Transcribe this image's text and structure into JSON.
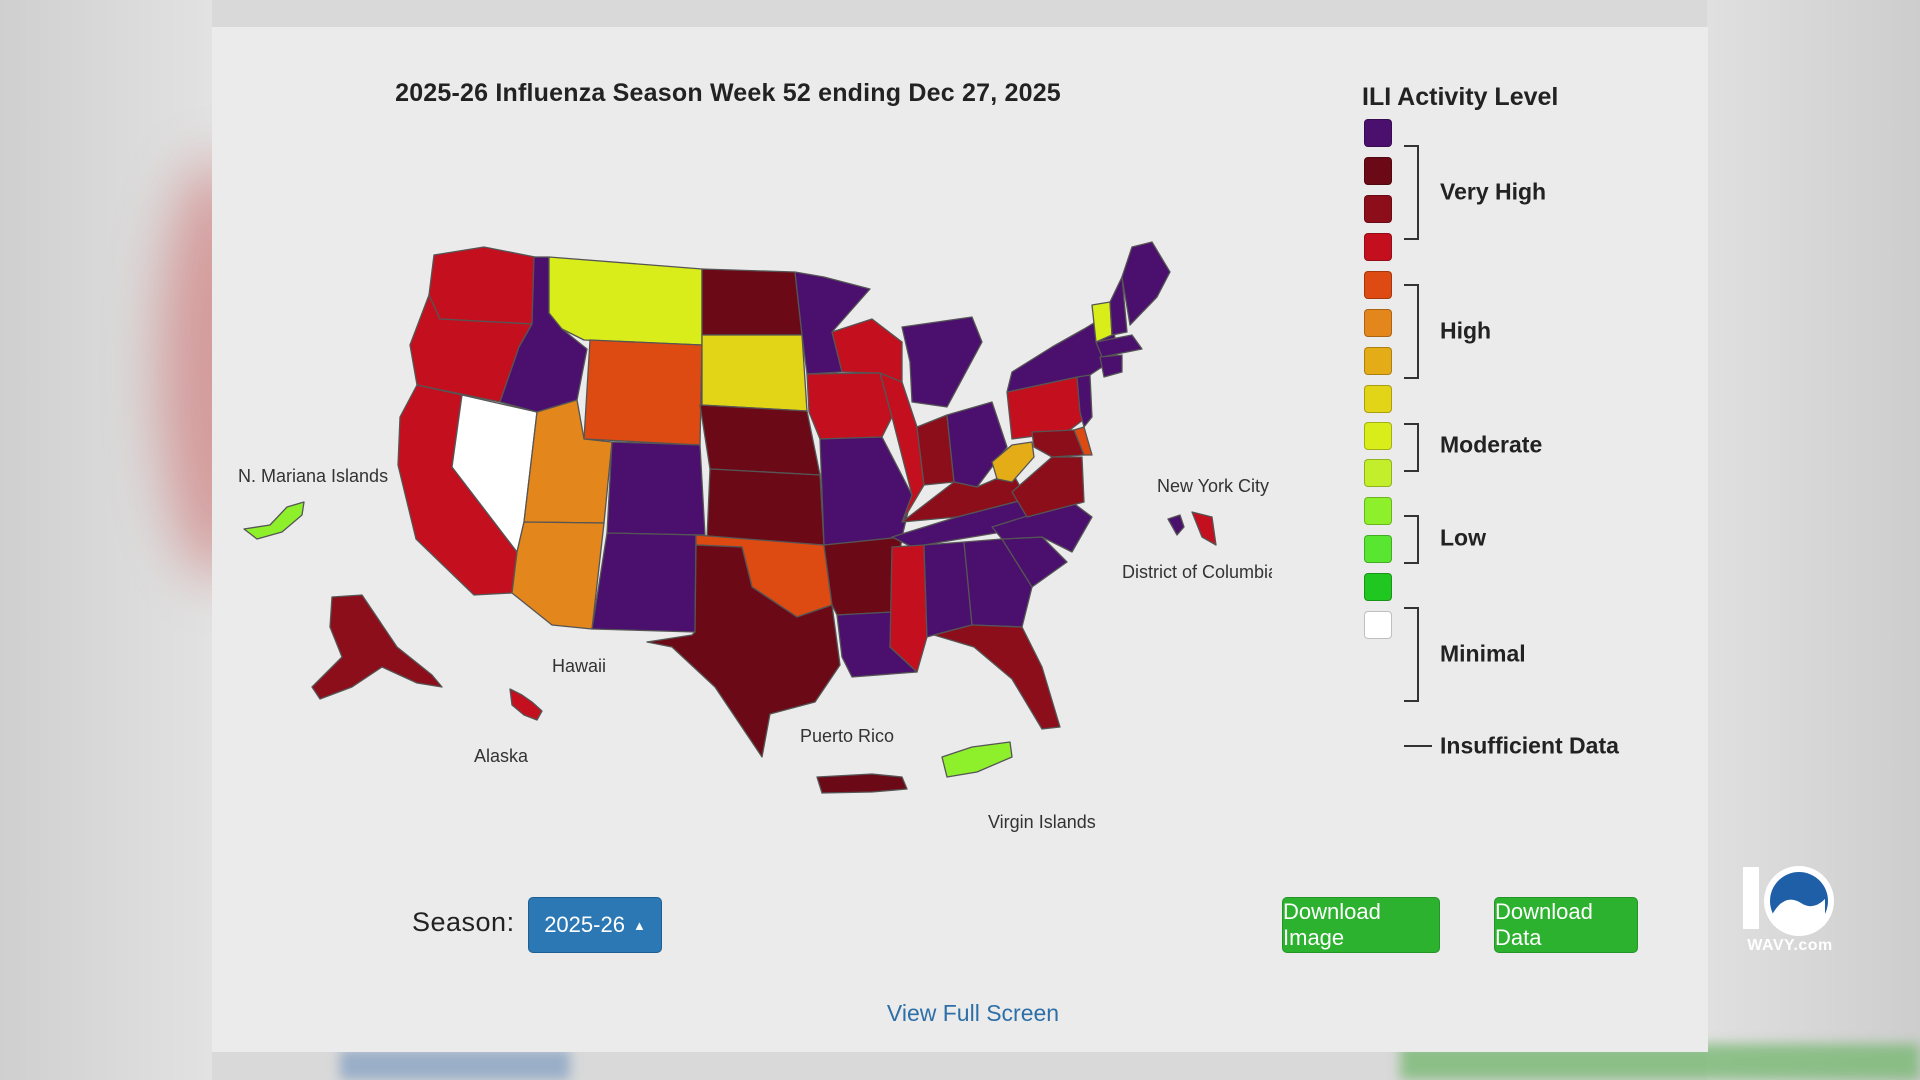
{
  "title": "2025-26 Influenza Season Week 52 ending Dec 27, 2025",
  "legend": {
    "title": "ILI Activity Level",
    "swatches": [
      {
        "level": 13,
        "color": "#4b0f6d"
      },
      {
        "level": 12,
        "color": "#6b0a16"
      },
      {
        "level": 11,
        "color": "#8c0e1b"
      },
      {
        "level": 10,
        "color": "#c4101e"
      },
      {
        "level": 9,
        "color": "#dd4a12"
      },
      {
        "level": 8,
        "color": "#e3861b"
      },
      {
        "level": 7,
        "color": "#e4ac17"
      },
      {
        "level": 6,
        "color": "#e2d417"
      },
      {
        "level": 5,
        "color": "#d9ed1a"
      },
      {
        "level": 4,
        "color": "#c2ee2b"
      },
      {
        "level": 3,
        "color": "#8ef02b"
      },
      {
        "level": 2,
        "color": "#58e630"
      },
      {
        "level": 1,
        "color": "#20c720"
      },
      {
        "level": 0,
        "color": "#ffffff"
      }
    ],
    "groups": [
      {
        "label": "Very High"
      },
      {
        "label": "High"
      },
      {
        "label": "Moderate"
      },
      {
        "label": "Low"
      },
      {
        "label": "Minimal"
      },
      {
        "label": "Insufficient Data"
      }
    ]
  },
  "map": {
    "labels": {
      "nmi": "N. Mariana Islands",
      "hawaii": "Hawaii",
      "alaska": "Alaska",
      "puerto_rico": "Puerto Rico",
      "virgin_islands": "Virgin Islands",
      "nyc": "New York City",
      "dc": "District of Columbia"
    },
    "regions": [
      {
        "name": "Washington",
        "level": 10
      },
      {
        "name": "Oregon",
        "level": 10
      },
      {
        "name": "California",
        "level": 10
      },
      {
        "name": "Nevada",
        "level": 0
      },
      {
        "name": "Idaho",
        "level": 13
      },
      {
        "name": "Montana",
        "level": 5
      },
      {
        "name": "Wyoming",
        "level": 9
      },
      {
        "name": "Utah",
        "level": 8
      },
      {
        "name": "Arizona",
        "level": 8
      },
      {
        "name": "Colorado",
        "level": 13
      },
      {
        "name": "New Mexico",
        "level": 13
      },
      {
        "name": "North Dakota",
        "level": 12
      },
      {
        "name": "South Dakota",
        "level": 6
      },
      {
        "name": "Nebraska",
        "level": 12
      },
      {
        "name": "Kansas",
        "level": 12
      },
      {
        "name": "Oklahoma",
        "level": 9
      },
      {
        "name": "Texas",
        "level": 12
      },
      {
        "name": "Minnesota",
        "level": 13
      },
      {
        "name": "Iowa",
        "level": 10
      },
      {
        "name": "Missouri",
        "level": 13
      },
      {
        "name": "Arkansas",
        "level": 12
      },
      {
        "name": "Louisiana",
        "level": 13
      },
      {
        "name": "Wisconsin",
        "level": 10
      },
      {
        "name": "Illinois",
        "level": 10
      },
      {
        "name": "Mississippi",
        "level": 10
      },
      {
        "name": "Michigan",
        "level": 13
      },
      {
        "name": "Indiana",
        "level": 11
      },
      {
        "name": "Kentucky",
        "level": 11
      },
      {
        "name": "Tennessee",
        "level": 13
      },
      {
        "name": "Alabama",
        "level": 13
      },
      {
        "name": "Ohio",
        "level": 13
      },
      {
        "name": "West Virginia",
        "level": 7
      },
      {
        "name": "Virginia",
        "level": 11
      },
      {
        "name": "North Carolina",
        "level": 13
      },
      {
        "name": "South Carolina",
        "level": 13
      },
      {
        "name": "Georgia",
        "level": 13
      },
      {
        "name": "Florida",
        "level": 11
      },
      {
        "name": "Pennsylvania",
        "level": 10
      },
      {
        "name": "New York",
        "level": 13
      },
      {
        "name": "Vermont",
        "level": 5
      },
      {
        "name": "New Hampshire",
        "level": 13
      },
      {
        "name": "Maine",
        "level": 13
      },
      {
        "name": "Massachusetts",
        "level": 13
      },
      {
        "name": "Connecticut",
        "level": 13
      },
      {
        "name": "New Jersey",
        "level": 13
      },
      {
        "name": "Delaware",
        "level": 9
      },
      {
        "name": "Maryland",
        "level": 11
      },
      {
        "name": "Alaska",
        "level": 11
      },
      {
        "name": "Hawaii",
        "level": 10
      },
      {
        "name": "Puerto Rico",
        "level": 12
      },
      {
        "name": "Virgin Islands",
        "level": 3
      },
      {
        "name": "N. Mariana Islands",
        "level": 3
      },
      {
        "name": "New York City",
        "level": 13
      },
      {
        "name": "District of Columbia",
        "level": 10
      }
    ]
  },
  "controls": {
    "season_label": "Season:",
    "season_value": "2025-26",
    "download_image": "Download Image",
    "download_data": "Download Data",
    "view_full_screen": "View Full Screen"
  },
  "watermark": {
    "text": "WAVY.com"
  }
}
